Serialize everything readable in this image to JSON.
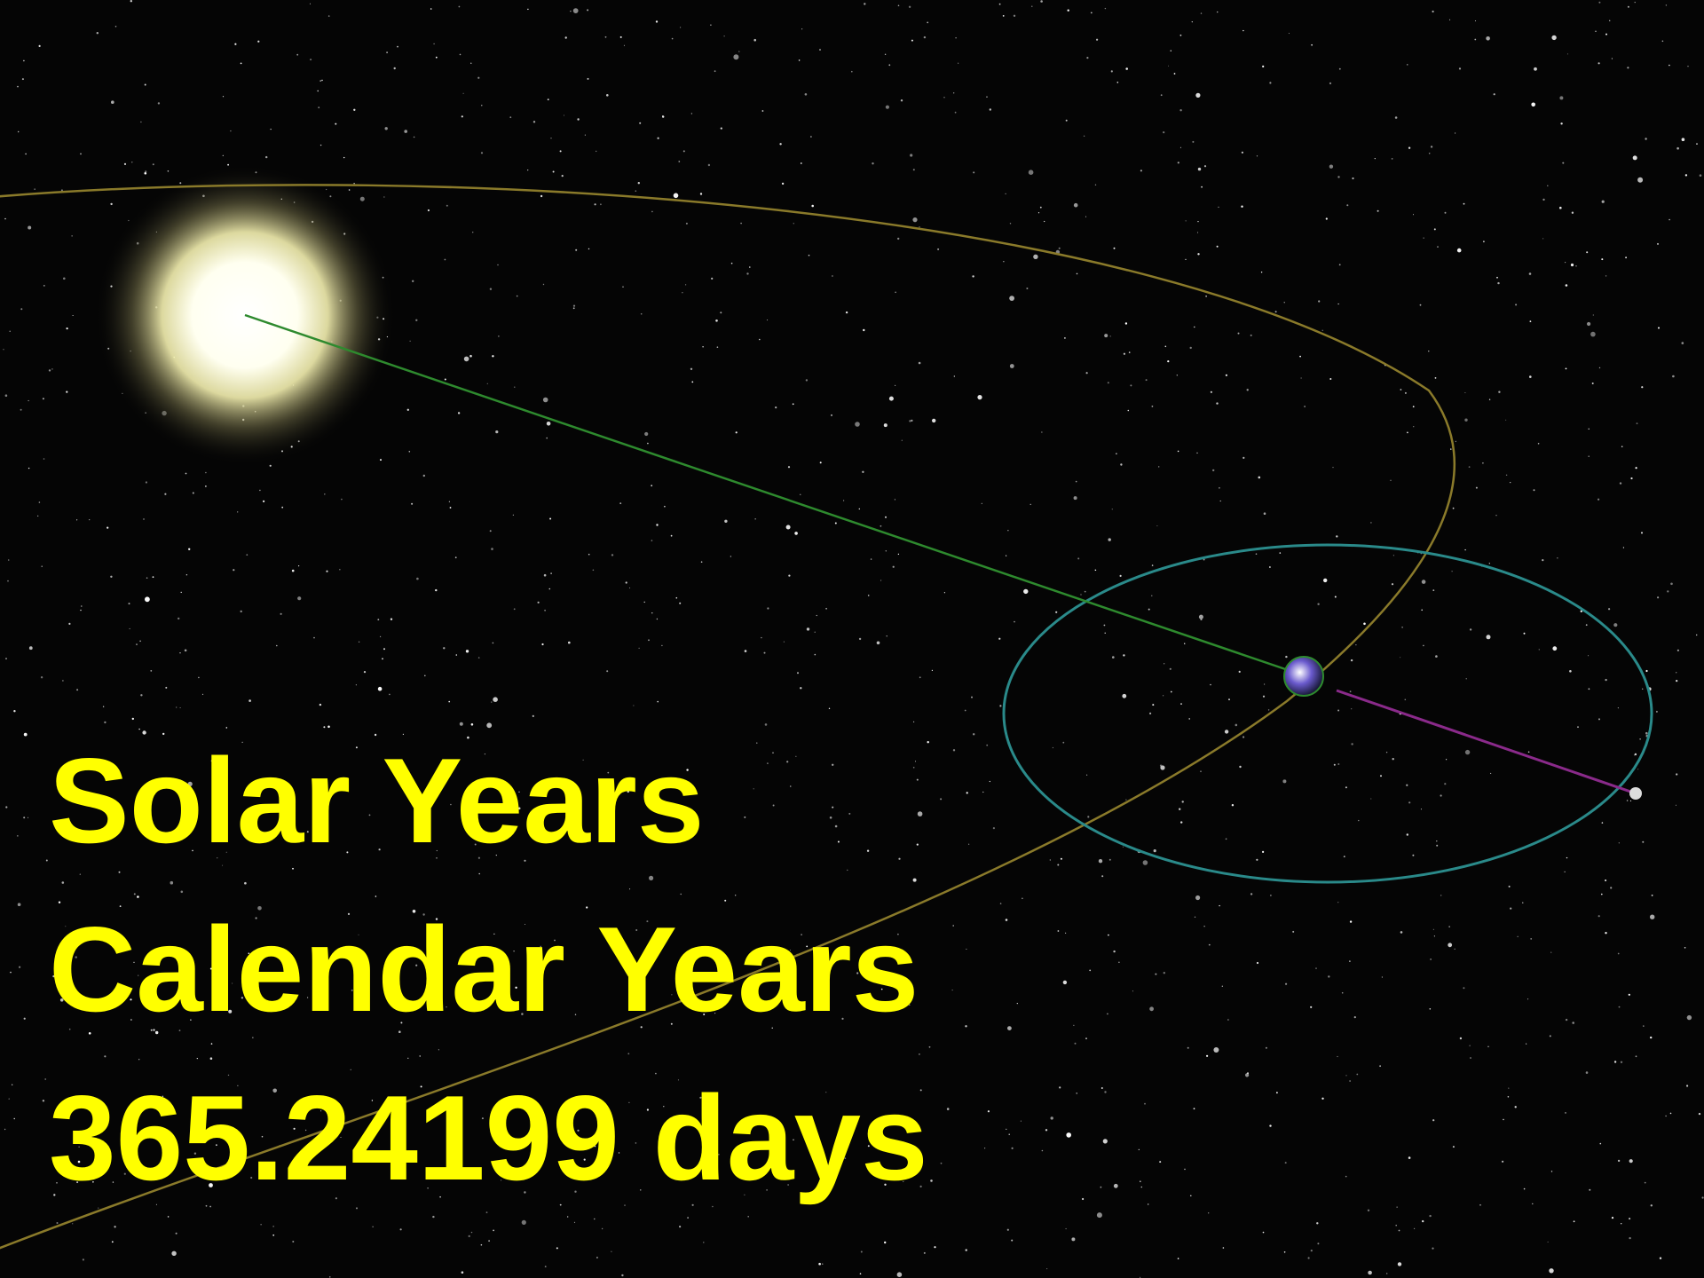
{
  "slide": {
    "lines": [
      "Solar Years",
      "Calendar Years",
      "365.24199 days"
    ]
  }
}
